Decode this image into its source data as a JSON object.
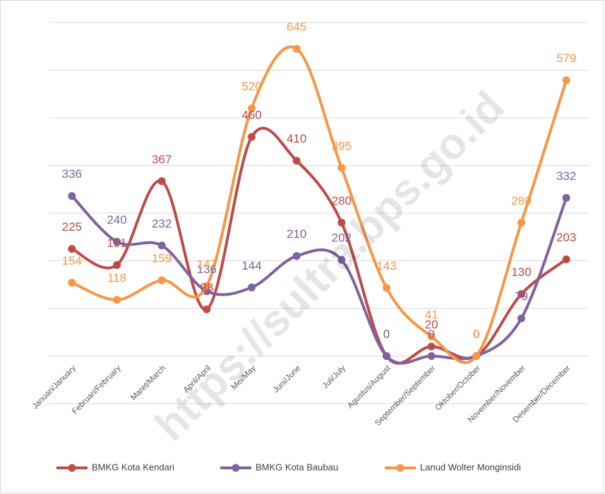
{
  "chart_data": {
    "type": "line",
    "categories": [
      "Januari/January",
      "Februari/February",
      "Maret/March",
      "April/April",
      "Mei/May",
      "Juni/June",
      "Juli/July",
      "Agustus/August",
      "September/September",
      "Oktober/October",
      "November/November",
      "Desember/December"
    ],
    "series": [
      {
        "name": "BMKG Kota Kendari",
        "color": "#be4b48",
        "values": [
          225,
          191,
          367,
          98,
          460,
          410,
          280,
          0,
          20,
          0,
          130,
          203
        ]
      },
      {
        "name": "BMKG Kota Baubau",
        "color": "#7e63a0",
        "values": [
          336,
          240,
          232,
          136,
          144,
          210,
          202,
          0,
          0,
          0,
          79,
          332
        ]
      },
      {
        "name": "Lanud Wolter Monginsidi",
        "color": "#f79646",
        "values": [
          154,
          118,
          159,
          147,
          520,
          645,
          395,
          143,
          41,
          0,
          280,
          579
        ]
      }
    ],
    "ylim": [
      -100,
      700
    ],
    "yticks": [
      -100,
      0,
      100,
      200,
      300,
      400,
      500,
      600,
      700
    ],
    "grid": true,
    "legend": "bottom",
    "watermark": "https://sultra.bps.go.id"
  }
}
